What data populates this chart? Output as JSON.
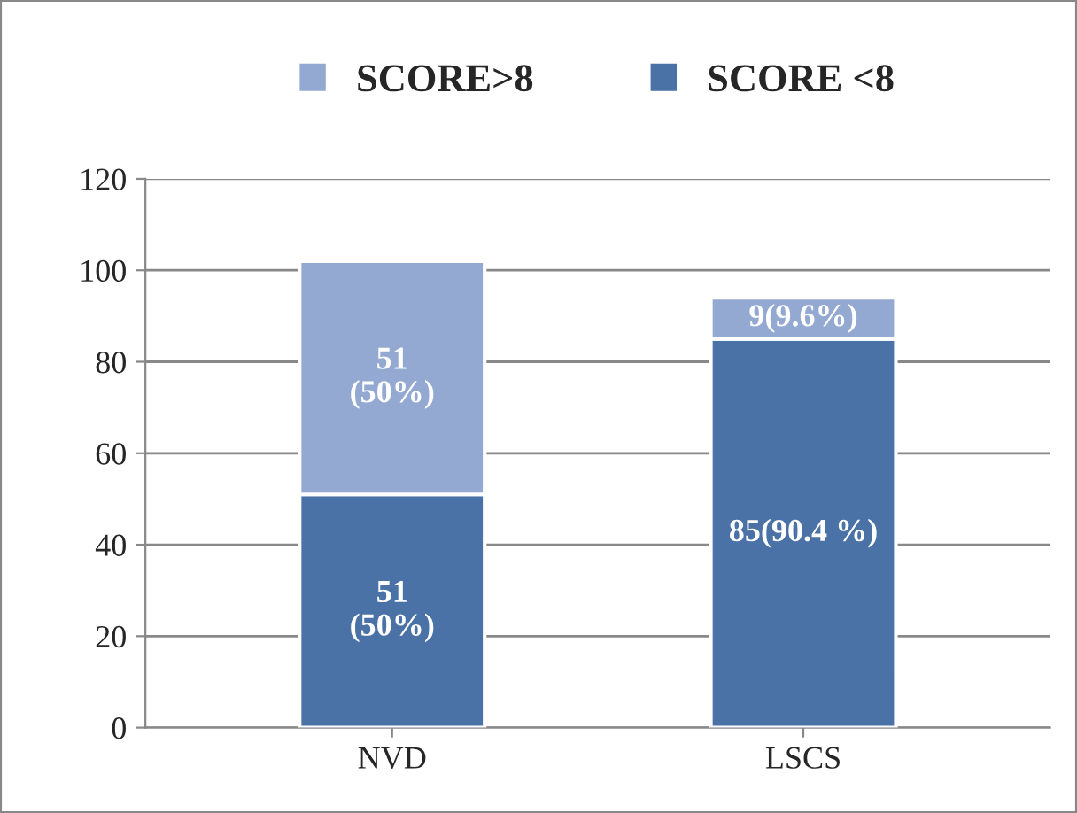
{
  "chart_data": {
    "type": "bar",
    "stacked": true,
    "categories": [
      "NVD",
      "LSCS"
    ],
    "series": [
      {
        "name": "SCORE <8",
        "color": "#4a72a6",
        "values": [
          51,
          85
        ],
        "value_labels": [
          "51\n(50%)",
          "85(90.4 %)"
        ]
      },
      {
        "name": "SCORE>8",
        "color": "#94a9d2",
        "values": [
          51,
          9
        ],
        "value_labels": [
          "51\n(50%)",
          "9(9.6%)"
        ]
      }
    ],
    "ylim": [
      0,
      120
    ],
    "yticks": [
      0,
      20,
      40,
      60,
      80,
      100,
      120
    ],
    "grid": "y",
    "legend": "top"
  }
}
